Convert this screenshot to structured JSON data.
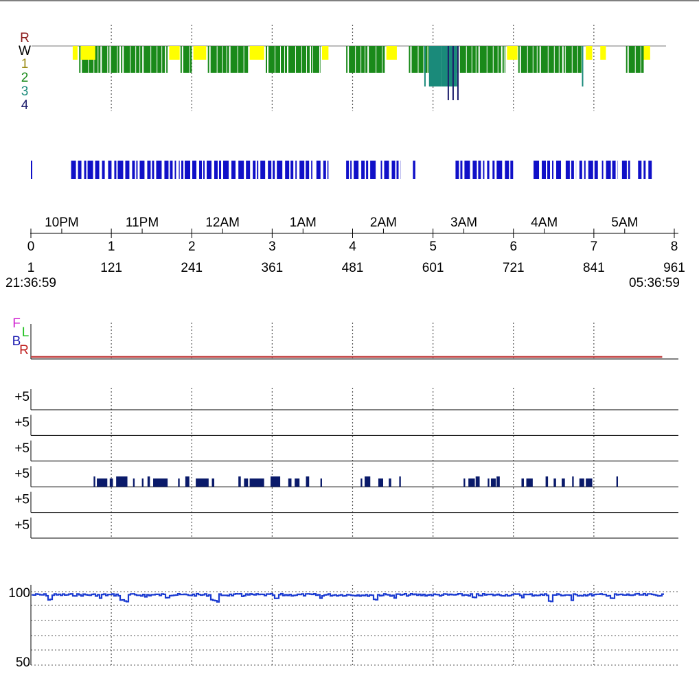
{
  "chart_data": [
    {
      "type": "hypnogram",
      "name": "sleep-stage-hypnogram",
      "stage_labels": [
        "R",
        "W",
        "1",
        "2",
        "3",
        "4"
      ],
      "stage_colors": {
        "R": "#8b1a1a",
        "W": "#000000",
        "1": "#9a8a10",
        "2": "#1a8a1a",
        "3": "#1a8a7a",
        "4": "#1a1a6a"
      },
      "hours_range": [
        0,
        8
      ],
      "segments": [
        {
          "start": 0.52,
          "end": 0.58,
          "stage": "1"
        },
        {
          "start": 0.6,
          "end": 0.95,
          "stage": "2"
        },
        {
          "start": 0.62,
          "end": 0.8,
          "stage": "1"
        },
        {
          "start": 0.96,
          "end": 1.1,
          "stage": "2"
        },
        {
          "start": 1.12,
          "end": 1.7,
          "stage": "2"
        },
        {
          "start": 1.72,
          "end": 1.85,
          "stage": "1"
        },
        {
          "start": 1.86,
          "end": 2.0,
          "stage": "2"
        },
        {
          "start": 2.02,
          "end": 2.18,
          "stage": "1"
        },
        {
          "start": 2.2,
          "end": 2.7,
          "stage": "2"
        },
        {
          "start": 2.72,
          "end": 2.9,
          "stage": "1"
        },
        {
          "start": 2.92,
          "end": 3.6,
          "stage": "2"
        },
        {
          "start": 3.62,
          "end": 3.7,
          "stage": "1"
        },
        {
          "start": 3.92,
          "end": 4.4,
          "stage": "2"
        },
        {
          "start": 4.42,
          "end": 4.55,
          "stage": "1"
        },
        {
          "start": 4.7,
          "end": 4.95,
          "stage": "2"
        },
        {
          "start": 4.95,
          "end": 5.1,
          "stage": "3"
        },
        {
          "start": 5.1,
          "end": 5.3,
          "stage": "3"
        },
        {
          "start": 5.3,
          "end": 5.9,
          "stage": "2"
        },
        {
          "start": 5.92,
          "end": 6.05,
          "stage": "1"
        },
        {
          "start": 6.06,
          "end": 6.85,
          "stage": "2"
        },
        {
          "start": 6.9,
          "end": 6.98,
          "stage": "1"
        },
        {
          "start": 7.08,
          "end": 7.15,
          "stage": "1"
        },
        {
          "start": 7.4,
          "end": 7.62,
          "stage": "2"
        },
        {
          "start": 7.62,
          "end": 7.7,
          "stage": "1"
        }
      ],
      "spikes": [
        {
          "t": 5.19,
          "stage": "4"
        },
        {
          "t": 5.25,
          "stage": "4"
        },
        {
          "t": 5.31,
          "stage": "4"
        },
        {
          "t": 6.86,
          "stage": "3"
        },
        {
          "t": 4.9,
          "stage": "3"
        }
      ]
    },
    {
      "type": "event-raster",
      "name": "event-marks-row",
      "color": "#1010c8",
      "events": [
        [
          0.0,
          0.01
        ],
        [
          0.5,
          0.92
        ],
        [
          0.96,
          1.85
        ],
        [
          1.87,
          2.55
        ],
        [
          2.58,
          3.5
        ],
        [
          3.55,
          3.7
        ],
        [
          3.92,
          4.3
        ],
        [
          4.35,
          4.6
        ],
        [
          4.75,
          4.78
        ],
        [
          5.28,
          5.7
        ],
        [
          5.74,
          6.02
        ],
        [
          6.25,
          6.6
        ],
        [
          6.65,
          6.78
        ],
        [
          6.82,
          7.05
        ],
        [
          7.1,
          7.3
        ],
        [
          7.35,
          7.45
        ],
        [
          7.55,
          7.72
        ]
      ]
    },
    {
      "type": "time-axis",
      "name": "time-axis",
      "hour_ticks": [
        "0",
        "1",
        "2",
        "3",
        "4",
        "5",
        "6",
        "7",
        "8"
      ],
      "clock_labels": [
        "10PM",
        "11PM",
        "12AM",
        "1AM",
        "2AM",
        "3AM",
        "4AM",
        "5AM"
      ],
      "clock_offset_hours": 0.3836,
      "epoch_labels": [
        "1",
        "121",
        "241",
        "361",
        "481",
        "601",
        "721",
        "841",
        "961"
      ],
      "start_time": "21:36:59",
      "end_time": "05:36:59"
    },
    {
      "type": "line",
      "name": "body-position",
      "position_labels": [
        "F",
        "L",
        "B",
        "R"
      ],
      "position_colors": {
        "F": "#d020d0",
        "L": "#20c020",
        "B": "#1a1ab0",
        "R": "#c02020"
      },
      "line_position": "R",
      "line_color": "#c04040",
      "hours_range": [
        0,
        7.85
      ]
    },
    {
      "type": "event-raster",
      "name": "channel-rows",
      "row_label": "+5",
      "rows": 6,
      "active_row_index": 3,
      "color": "#0a1a6a",
      "events": [
        [
          0.78,
          0.8
        ],
        [
          0.82,
          0.95
        ],
        [
          0.98,
          1.02
        ],
        [
          1.06,
          1.2
        ],
        [
          1.27,
          1.29
        ],
        [
          1.38,
          1.4
        ],
        [
          1.45,
          1.48
        ],
        [
          1.52,
          1.7
        ],
        [
          1.83,
          1.85
        ],
        [
          1.92,
          1.97
        ],
        [
          2.05,
          2.21
        ],
        [
          2.25,
          2.28
        ],
        [
          2.58,
          2.61
        ],
        [
          2.65,
          2.7
        ],
        [
          2.72,
          2.9
        ],
        [
          2.98,
          3.1
        ],
        [
          3.2,
          3.24
        ],
        [
          3.28,
          3.34
        ],
        [
          3.42,
          3.46
        ],
        [
          3.6,
          3.62
        ],
        [
          4.1,
          4.12
        ],
        [
          4.15,
          4.22
        ],
        [
          4.32,
          4.38
        ],
        [
          4.45,
          4.48
        ],
        [
          4.58,
          4.6
        ],
        [
          5.38,
          5.4
        ],
        [
          5.44,
          5.52
        ],
        [
          5.53,
          5.58
        ],
        [
          5.68,
          5.7
        ],
        [
          5.72,
          5.78
        ],
        [
          5.79,
          5.83
        ],
        [
          6.1,
          6.13
        ],
        [
          6.16,
          6.24
        ],
        [
          6.4,
          6.43
        ],
        [
          6.5,
          6.53
        ],
        [
          6.6,
          6.64
        ],
        [
          6.73,
          6.75
        ],
        [
          6.82,
          6.88
        ],
        [
          6.9,
          6.98
        ],
        [
          7.28,
          7.3
        ]
      ]
    },
    {
      "type": "line",
      "name": "oxygen-saturation",
      "ylim": [
        50,
        100
      ],
      "y_tick_labels": [
        "100",
        "50"
      ],
      "gridlines": [
        100,
        95,
        90,
        85,
        80
      ],
      "color": "#1a3ad0",
      "x_range": [
        0,
        7.85
      ],
      "dips": [
        {
          "t": 0.22,
          "v": 94
        },
        {
          "t": 0.85,
          "v": 95
        },
        {
          "t": 1.12,
          "v": 94
        },
        {
          "t": 1.17,
          "v": 93
        },
        {
          "t": 1.42,
          "v": 96
        },
        {
          "t": 1.68,
          "v": 95
        },
        {
          "t": 2.25,
          "v": 94
        },
        {
          "t": 2.3,
          "v": 93
        },
        {
          "t": 2.62,
          "v": 96
        },
        {
          "t": 3.05,
          "v": 95
        },
        {
          "t": 3.6,
          "v": 95
        },
        {
          "t": 4.18,
          "v": 96
        },
        {
          "t": 4.28,
          "v": 94
        },
        {
          "t": 4.52,
          "v": 95
        },
        {
          "t": 5.5,
          "v": 96
        },
        {
          "t": 6.1,
          "v": 95
        },
        {
          "t": 6.45,
          "v": 93
        },
        {
          "t": 6.72,
          "v": 94
        },
        {
          "t": 7.22,
          "v": 95
        }
      ]
    }
  ]
}
